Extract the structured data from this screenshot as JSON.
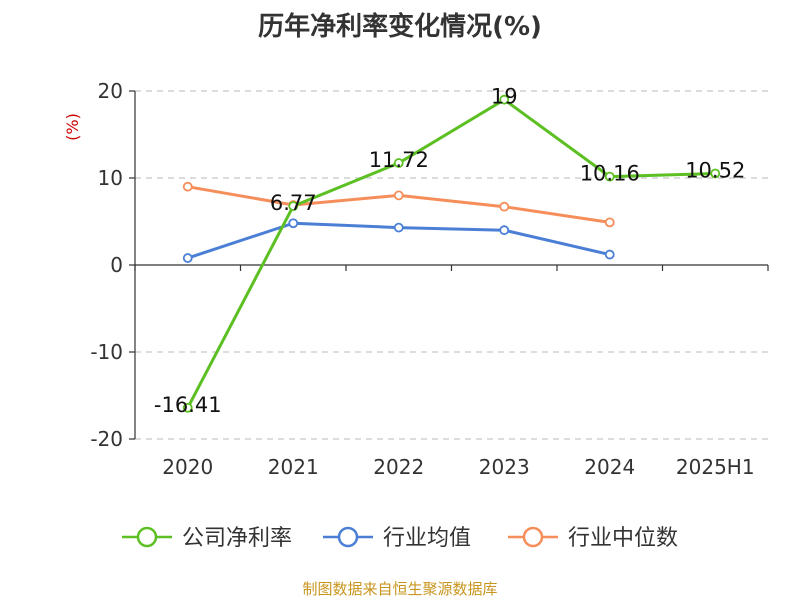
{
  "chart_data": {
    "type": "line",
    "title": "历年净利率变化情况(%)",
    "ylabel": "(%)",
    "categories": [
      "2020",
      "2021",
      "2022",
      "2023",
      "2024",
      "2025H1"
    ],
    "ylim": [
      -20,
      20
    ],
    "yticks": [
      20,
      10,
      0,
      -10,
      -20
    ],
    "grid": true,
    "legend_position": "bottom",
    "series": [
      {
        "name": "公司净利率",
        "color": "#5cbf22",
        "values": [
          -16.41,
          6.77,
          11.72,
          19,
          10.16,
          10.52
        ],
        "labels": [
          "-16.41",
          "6.77",
          "11.72",
          "19",
          "10.16",
          "10.52"
        ]
      },
      {
        "name": "行业均值",
        "color": "#4b7fd6",
        "values": [
          0.8,
          4.8,
          4.3,
          4.0,
          1.2,
          null
        ]
      },
      {
        "name": "行业中位数",
        "color": "#f58e5a",
        "values": [
          9.0,
          6.9,
          8.0,
          6.7,
          4.9,
          null
        ]
      }
    ]
  },
  "source": "制图数据来自恒生聚源数据库"
}
